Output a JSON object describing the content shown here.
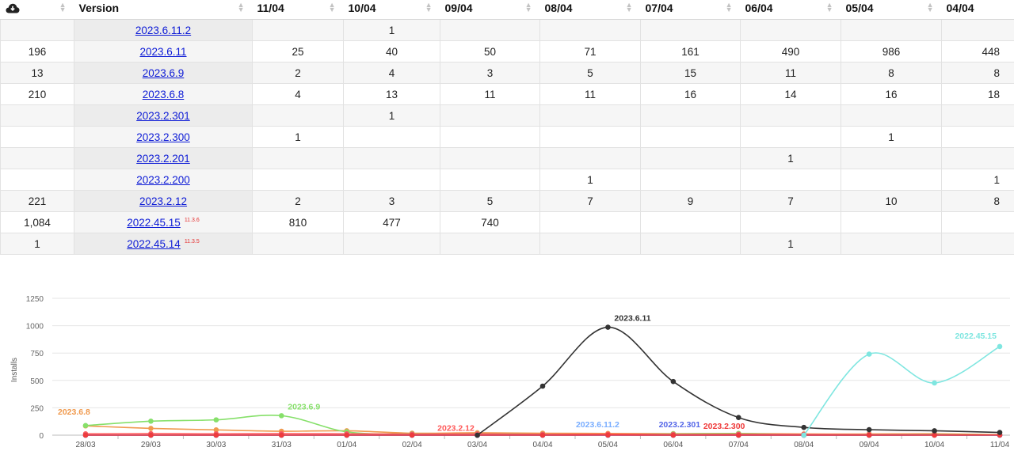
{
  "table": {
    "headers": [
      "",
      "Version",
      "11/04",
      "10/04",
      "09/04",
      "08/04",
      "07/04",
      "06/04",
      "05/04",
      "04/04"
    ],
    "rows": [
      {
        "total": "",
        "version": "2023.6.11.2",
        "tag": "",
        "cells": [
          "",
          "1",
          "",
          "",
          "",
          "",
          "",
          ""
        ]
      },
      {
        "total": "196",
        "version": "2023.6.11",
        "tag": "",
        "cells": [
          "25",
          "40",
          "50",
          "71",
          "161",
          "490",
          "986",
          "448"
        ]
      },
      {
        "total": "13",
        "version": "2023.6.9",
        "tag": "",
        "cells": [
          "2",
          "4",
          "3",
          "5",
          "15",
          "11",
          "8",
          "8"
        ]
      },
      {
        "total": "210",
        "version": "2023.6.8",
        "tag": "",
        "cells": [
          "4",
          "13",
          "11",
          "11",
          "16",
          "14",
          "16",
          "18"
        ]
      },
      {
        "total": "",
        "version": "2023.2.301",
        "tag": "",
        "cells": [
          "",
          "1",
          "",
          "",
          "",
          "",
          "",
          ""
        ]
      },
      {
        "total": "",
        "version": "2023.2.300",
        "tag": "",
        "cells": [
          "1",
          "",
          "",
          "",
          "",
          "",
          "1",
          ""
        ]
      },
      {
        "total": "",
        "version": "2023.2.201",
        "tag": "",
        "cells": [
          "",
          "",
          "",
          "",
          "",
          "1",
          "",
          ""
        ]
      },
      {
        "total": "",
        "version": "2023.2.200",
        "tag": "",
        "cells": [
          "",
          "",
          "",
          "1",
          "",
          "",
          "",
          "1"
        ]
      },
      {
        "total": "221",
        "version": "2023.2.12",
        "tag": "",
        "cells": [
          "2",
          "3",
          "5",
          "7",
          "9",
          "7",
          "10",
          "8"
        ]
      },
      {
        "total": "1,084",
        "version": "2022.45.15",
        "tag": "11.3.6",
        "cells": [
          "810",
          "477",
          "740",
          "",
          "",
          "",
          "",
          ""
        ]
      },
      {
        "total": "1",
        "version": "2022.45.14",
        "tag": "11.3.5",
        "cells": [
          "",
          "",
          "",
          "",
          "",
          "1",
          "",
          ""
        ]
      }
    ]
  },
  "icons": {
    "header_download": "cloud-download-icon"
  },
  "chart_data": {
    "type": "line",
    "ylabel": "Installs",
    "ylim": [
      0,
      1250
    ],
    "yticks": [
      0,
      250,
      500,
      750,
      1000,
      1250
    ],
    "x": [
      "28/03",
      "29/03",
      "30/03",
      "31/03",
      "01/04",
      "02/04",
      "03/04",
      "04/04",
      "05/04",
      "06/04",
      "07/04",
      "08/04",
      "09/04",
      "10/04",
      "11/04"
    ],
    "grid": true,
    "series": [
      {
        "name": "2023.6.8",
        "color": "#f09a4e",
        "values": [
          85,
          62,
          48,
          36,
          40,
          18,
          22,
          18,
          16,
          14,
          16,
          11,
          11,
          13,
          4
        ],
        "label_at": 0,
        "label_pos": "above-right"
      },
      {
        "name": "2023.6.9",
        "color": "#86e06a",
        "values": [
          88,
          128,
          140,
          178,
          30,
          12,
          14,
          8,
          8,
          11,
          15,
          5,
          3,
          4,
          2
        ],
        "label_at": 3,
        "label_pos": "above-right"
      },
      {
        "name": "2023.2.12",
        "color": "#ff5a5a",
        "values": [
          12,
          14,
          12,
          14,
          12,
          10,
          12,
          8,
          10,
          7,
          9,
          7,
          5,
          3,
          2
        ],
        "label_at": 5,
        "label_pos": "above-right"
      },
      {
        "name": "2023.6.11.2",
        "color": "#7aaeff",
        "values": [
          0,
          0,
          0,
          0,
          0,
          0,
          0,
          0,
          0,
          0,
          0,
          0,
          0,
          1,
          0
        ],
        "label_at": 8,
        "label_pos": "above"
      },
      {
        "name": "2023.2.301",
        "color": "#5567e8",
        "values": [
          0,
          0,
          0,
          0,
          0,
          0,
          0,
          0,
          0,
          0,
          0,
          0,
          0,
          1,
          0
        ],
        "label_at": 9,
        "label_pos": "above"
      },
      {
        "name": "2023.2.300",
        "color": "#ef3b3b",
        "values": [
          0,
          0,
          0,
          0,
          0,
          0,
          0,
          0,
          1,
          0,
          0,
          0,
          0,
          0,
          1
        ],
        "label_at": 9,
        "label_pos": "above-right"
      },
      {
        "name": "2023.6.11",
        "color": "#333333",
        "values": [
          null,
          null,
          null,
          null,
          null,
          null,
          0,
          448,
          986,
          490,
          161,
          71,
          50,
          40,
          25
        ],
        "label_at": 8,
        "label_pos": "above-right"
      },
      {
        "name": "2022.45.15",
        "color": "#7fe6e0",
        "values": [
          null,
          null,
          null,
          null,
          null,
          null,
          null,
          null,
          null,
          null,
          null,
          0,
          740,
          477,
          810
        ],
        "label_at": 14,
        "label_pos": "above-left"
      }
    ]
  }
}
